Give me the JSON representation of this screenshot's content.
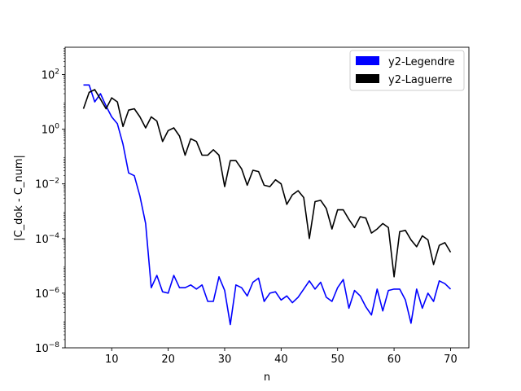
{
  "chart_data": {
    "type": "line",
    "title": "",
    "xlabel": "n",
    "ylabel": "|C_dok - C_num|",
    "xlim": [
      1.75,
      73.25
    ],
    "ylim_log10": [
      -8,
      3
    ],
    "yscale": "log",
    "x_ticks": [
      10,
      20,
      30,
      40,
      50,
      60,
      70
    ],
    "y_ticks": [
      {
        "exp": -8,
        "base": "10",
        "sup": "−8"
      },
      {
        "exp": -6,
        "base": "10",
        "sup": "−6"
      },
      {
        "exp": -4,
        "base": "10",
        "sup": "−4"
      },
      {
        "exp": -2,
        "base": "10",
        "sup": "−2"
      },
      {
        "exp": 0,
        "base": "10",
        "sup": "0"
      },
      {
        "exp": 2,
        "base": "10",
        "sup": "2"
      }
    ],
    "grid": false,
    "legend_position": "top-right",
    "x": [
      5,
      6,
      7,
      8,
      9,
      10,
      11,
      12,
      13,
      14,
      15,
      16,
      17,
      18,
      19,
      20,
      21,
      22,
      23,
      24,
      25,
      26,
      27,
      28,
      29,
      30,
      31,
      32,
      33,
      34,
      35,
      36,
      37,
      38,
      39,
      40,
      41,
      42,
      43,
      44,
      45,
      46,
      47,
      48,
      49,
      50,
      51,
      52,
      53,
      54,
      55,
      56,
      57,
      58,
      59,
      60,
      61,
      62,
      63,
      64,
      65,
      66,
      67,
      68,
      69,
      70
    ],
    "series": [
      {
        "name": "y2-Legendre",
        "color": "#0000ff",
        "log10_values": [
          1.62,
          1.62,
          1.0,
          1.3,
          0.85,
          0.45,
          0.2,
          -0.55,
          -1.6,
          -1.7,
          -2.45,
          -3.45,
          -5.8,
          -5.35,
          -5.95,
          -6.0,
          -5.35,
          -5.8,
          -5.8,
          -5.7,
          -5.85,
          -5.7,
          -6.3,
          -6.3,
          -5.4,
          -5.9,
          -7.15,
          -5.7,
          -5.8,
          -6.1,
          -5.6,
          -5.45,
          -6.3,
          -6.0,
          -5.95,
          -6.25,
          -6.1,
          -6.35,
          -6.15,
          -5.85,
          -5.55,
          -5.85,
          -5.6,
          -6.15,
          -6.3,
          -5.8,
          -5.5,
          -6.55,
          -5.9,
          -6.1,
          -6.5,
          -6.8,
          -5.85,
          -6.65,
          -5.9,
          -5.85,
          -5.85,
          -6.25,
          -7.1,
          -5.85,
          -6.55,
          -6.0,
          -6.3,
          -5.55,
          -5.65,
          -5.85
        ]
      },
      {
        "name": "y2-Laguerre",
        "color": "#000000",
        "log10_values": [
          0.75,
          1.35,
          1.45,
          1.1,
          0.75,
          1.15,
          1.0,
          0.1,
          0.7,
          0.75,
          0.45,
          0.05,
          0.45,
          0.3,
          -0.45,
          -0.05,
          0.05,
          -0.25,
          -0.95,
          -0.35,
          -0.45,
          -0.95,
          -0.95,
          -0.75,
          -0.95,
          -2.1,
          -1.15,
          -1.15,
          -1.45,
          -2.05,
          -1.5,
          -1.55,
          -2.05,
          -2.1,
          -1.85,
          -2.0,
          -2.75,
          -2.4,
          -2.25,
          -2.5,
          -4.0,
          -2.65,
          -2.6,
          -2.9,
          -3.65,
          -2.95,
          -2.95,
          -3.3,
          -3.6,
          -3.2,
          -3.25,
          -3.8,
          -3.65,
          -3.45,
          -3.6,
          -5.4,
          -3.75,
          -3.7,
          -4.05,
          -4.3,
          -3.9,
          -4.05,
          -4.95,
          -4.25,
          -4.15,
          -4.5
        ]
      }
    ]
  }
}
